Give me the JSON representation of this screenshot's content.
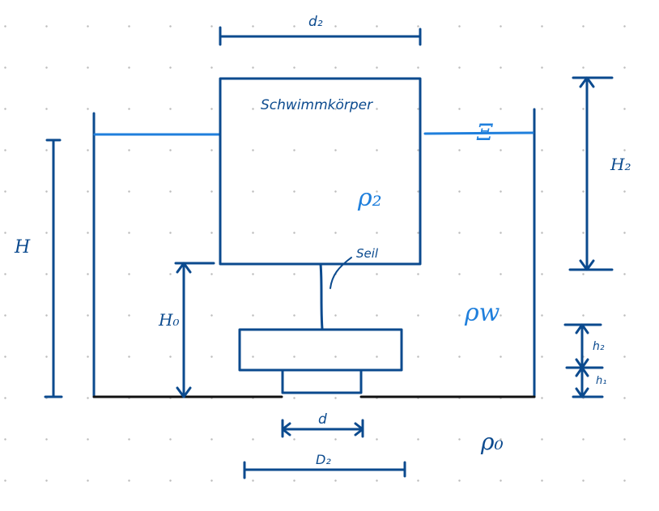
{
  "labels": {
    "float_width": "d₂",
    "float_body": "Schwimmkörper",
    "tank_height": "H",
    "float_height": "H₂",
    "float_density": "ρ₂",
    "water_level": "Ξ",
    "rope": "Seil",
    "rope_height": "H₀",
    "water_density": "ρw",
    "plug_height_upper": "h₂",
    "plug_height_lower": "h₁",
    "hole_diameter": "d",
    "ambient_density": "ρ₀",
    "plug_width": "D₂"
  },
  "colors": {
    "ink": "#0b4a8e",
    "water": "#1f7fdc",
    "floor": "#111111",
    "grid_dots": "#bdbdbd"
  }
}
